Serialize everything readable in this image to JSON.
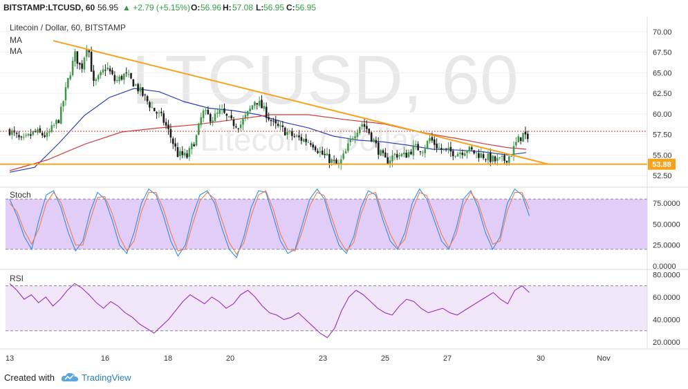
{
  "header": {
    "symbol": "BITSTAMP:LTCUSD, 60",
    "last": "56.95",
    "change": "▲ +2.79 (+5.15%)",
    "open_label": "O:",
    "open": "56.96",
    "high_label": "H:",
    "high": "57.08",
    "low_label": "L:",
    "low": "56.95",
    "close_label": "C:",
    "close": "56.95"
  },
  "legend": {
    "title": "Litecoin / Dollar, 60, BITSTAMP",
    "ma1": "MA",
    "ma2": "MA"
  },
  "watermark": {
    "main": "LTCUSD, 60",
    "sub": "Litecoin / Dollar"
  },
  "footer": {
    "created": "Created with",
    "brand": "TradingView"
  },
  "colors": {
    "up": "#2ea043",
    "bull_candle": "#3f9a4a",
    "bear_candle": "#1d1d1d",
    "trendline": "#f7a21b",
    "ma_blue": "#2b3fb8",
    "ma_red": "#d23a3a",
    "stoch_k": "#2f8ce6",
    "stoch_d": "#ef7b4a",
    "stoch_band": "#e2ccf8",
    "rsi_line": "#9b2fb8",
    "rsi_band": "#f2e6fb",
    "price_badge": "#f7a21b"
  },
  "chart_data": [
    {
      "type": "candlestick",
      "title": "Litecoin / Dollar, 60, BITSTAMP",
      "ylim": [
        51.5,
        71.5
      ],
      "y_ticks": [
        "70.00",
        "67.50",
        "65.00",
        "62.50",
        "60.00",
        "57.50",
        "55.00",
        "52.50"
      ],
      "support_label": "53.88",
      "support_level": 53.88,
      "trendline": {
        "from": {
          "x": 1.4,
          "y": 68.9
        },
        "to": {
          "x": 17.3,
          "y": 53.9
        }
      },
      "close_levels": [
        [
          0,
          58.0
        ],
        [
          0.4,
          56.6
        ],
        [
          0.8,
          57.8
        ],
        [
          1.2,
          57.3
        ],
        [
          1.6,
          59.5
        ],
        [
          1.9,
          64.5
        ],
        [
          2.1,
          67.2
        ],
        [
          2.3,
          65.4
        ],
        [
          2.5,
          68.8
        ],
        [
          2.7,
          63.6
        ],
        [
          2.9,
          64.5
        ],
        [
          3.1,
          65.8
        ],
        [
          3.4,
          63.9
        ],
        [
          3.7,
          64.8
        ],
        [
          4.0,
          63.7
        ],
        [
          4.3,
          62.2
        ],
        [
          4.6,
          60.6
        ],
        [
          4.9,
          59.5
        ],
        [
          5.1,
          57.9
        ],
        [
          5.4,
          55.1
        ],
        [
          5.7,
          54.8
        ],
        [
          6.0,
          57.2
        ],
        [
          6.2,
          60.2
        ],
        [
          6.5,
          59.4
        ],
        [
          6.8,
          60.3
        ],
        [
          7.1,
          59.0
        ],
        [
          7.4,
          58.6
        ],
        [
          7.7,
          60.3
        ],
        [
          7.9,
          61.8
        ],
        [
          8.2,
          60.3
        ],
        [
          8.5,
          58.6
        ],
        [
          8.8,
          58.0
        ],
        [
          9.1,
          57.3
        ],
        [
          9.4,
          56.9
        ],
        [
          9.7,
          56.6
        ],
        [
          10.0,
          55.2
        ],
        [
          10.3,
          54.4
        ],
        [
          10.55,
          53.6
        ],
        [
          10.8,
          55.3
        ],
        [
          11.0,
          57.2
        ],
        [
          11.3,
          58.9
        ],
        [
          11.5,
          58.1
        ],
        [
          11.7,
          56.7
        ],
        [
          11.9,
          55.2
        ],
        [
          12.1,
          54.2
        ],
        [
          12.4,
          55.1
        ],
        [
          12.7,
          54.9
        ],
        [
          13.0,
          55.9
        ],
        [
          13.3,
          55.7
        ],
        [
          13.5,
          57.0
        ],
        [
          13.8,
          55.8
        ],
        [
          14.1,
          55.4
        ],
        [
          14.4,
          55.3
        ],
        [
          14.7,
          55.7
        ],
        [
          15.0,
          55.2
        ],
        [
          15.3,
          54.8
        ],
        [
          15.6,
          54.3
        ],
        [
          15.9,
          54.4
        ],
        [
          16.1,
          55.0
        ],
        [
          16.3,
          56.6
        ],
        [
          16.5,
          57.5
        ],
        [
          16.7,
          56.95
        ]
      ],
      "ma_fast": [
        [
          0,
          52.9
        ],
        [
          0.8,
          53.5
        ],
        [
          1.6,
          56.5
        ],
        [
          2.4,
          59.8
        ],
        [
          3.2,
          62.0
        ],
        [
          4.0,
          63.1
        ],
        [
          4.8,
          62.7
        ],
        [
          5.6,
          61.5
        ],
        [
          6.4,
          60.7
        ],
        [
          7.2,
          60.4
        ],
        [
          8.0,
          59.9
        ],
        [
          8.8,
          59.0
        ],
        [
          9.6,
          58.3
        ],
        [
          10.4,
          57.3
        ],
        [
          11.2,
          56.8
        ],
        [
          12.0,
          56.6
        ],
        [
          12.8,
          56.2
        ],
        [
          13.6,
          55.7
        ],
        [
          14.4,
          55.6
        ],
        [
          15.2,
          55.4
        ],
        [
          16.0,
          55.0
        ],
        [
          16.6,
          55.3
        ]
      ],
      "ma_slow": [
        [
          0,
          53.1
        ],
        [
          1.2,
          54.4
        ],
        [
          2.4,
          56.3
        ],
        [
          3.6,
          57.8
        ],
        [
          4.8,
          58.3
        ],
        [
          6.0,
          58.7
        ],
        [
          7.2,
          59.3
        ],
        [
          8.4,
          59.9
        ],
        [
          9.6,
          59.9
        ],
        [
          10.8,
          59.3
        ],
        [
          12.0,
          58.8
        ],
        [
          12.8,
          58.1
        ],
        [
          13.6,
          57.5
        ],
        [
          14.4,
          57.0
        ],
        [
          15.2,
          56.4
        ],
        [
          16.0,
          55.9
        ],
        [
          16.6,
          55.7
        ]
      ]
    },
    {
      "type": "line",
      "title": "Stoch",
      "ylim": [
        0,
        90
      ],
      "y_ticks": [
        "75.0000",
        "50.0000",
        "25.0000",
        "0.0000"
      ],
      "bands": [
        20,
        80
      ],
      "series": [
        {
          "values": [
            80,
            60,
            35,
            20,
            55,
            85,
            90,
            70,
            40,
            18,
            30,
            65,
            88,
            80,
            55,
            25,
            15,
            40,
            75,
            92,
            85,
            60,
            30,
            12,
            25,
            60,
            85,
            90,
            75,
            45,
            20,
            10,
            35,
            70,
            90,
            88,
            60,
            30,
            15,
            20,
            50,
            80,
            92,
            80,
            50,
            25,
            15,
            35,
            70,
            90,
            85,
            55,
            30,
            20,
            40,
            75,
            92,
            80,
            55,
            30,
            20,
            45,
            80,
            90,
            70,
            40,
            20,
            35,
            75,
            92,
            85,
            60
          ]
        },
        {
          "values": [
            75,
            65,
            42,
            26,
            45,
            75,
            88,
            76,
            50,
            25,
            25,
            55,
            82,
            83,
            63,
            35,
            18,
            30,
            65,
            88,
            88,
            68,
            40,
            18,
            20,
            50,
            78,
            88,
            80,
            55,
            28,
            14,
            28,
            60,
            85,
            90,
            68,
            38,
            20,
            18,
            42,
            72,
            88,
            84,
            58,
            32,
            18,
            28,
            62,
            85,
            88,
            62,
            38,
            22,
            32,
            66,
            88,
            84,
            62,
            38,
            22,
            38,
            72,
            88,
            76,
            48,
            26,
            30,
            66,
            88,
            88,
            68
          ]
        }
      ]
    },
    {
      "type": "line",
      "title": "RSI",
      "ylim": [
        17,
        82
      ],
      "y_ticks": [
        "80.0000",
        "60.0000",
        "40.0000",
        "20.0000"
      ],
      "bands": [
        30,
        70
      ],
      "series": [
        {
          "values": [
            72,
            66,
            58,
            62,
            55,
            60,
            52,
            58,
            66,
            72,
            68,
            62,
            55,
            50,
            56,
            52,
            46,
            42,
            36,
            32,
            28,
            34,
            40,
            48,
            56,
            62,
            58,
            54,
            60,
            56,
            50,
            54,
            62,
            66,
            60,
            52,
            46,
            44,
            40,
            42,
            46,
            40,
            34,
            28,
            24,
            32,
            48,
            60,
            66,
            62,
            56,
            50,
            46,
            44,
            52,
            58,
            56,
            50,
            46,
            48,
            50,
            46,
            44,
            48,
            52,
            56,
            60,
            64,
            58,
            54,
            66,
            70,
            64
          ]
        }
      ]
    }
  ]
}
